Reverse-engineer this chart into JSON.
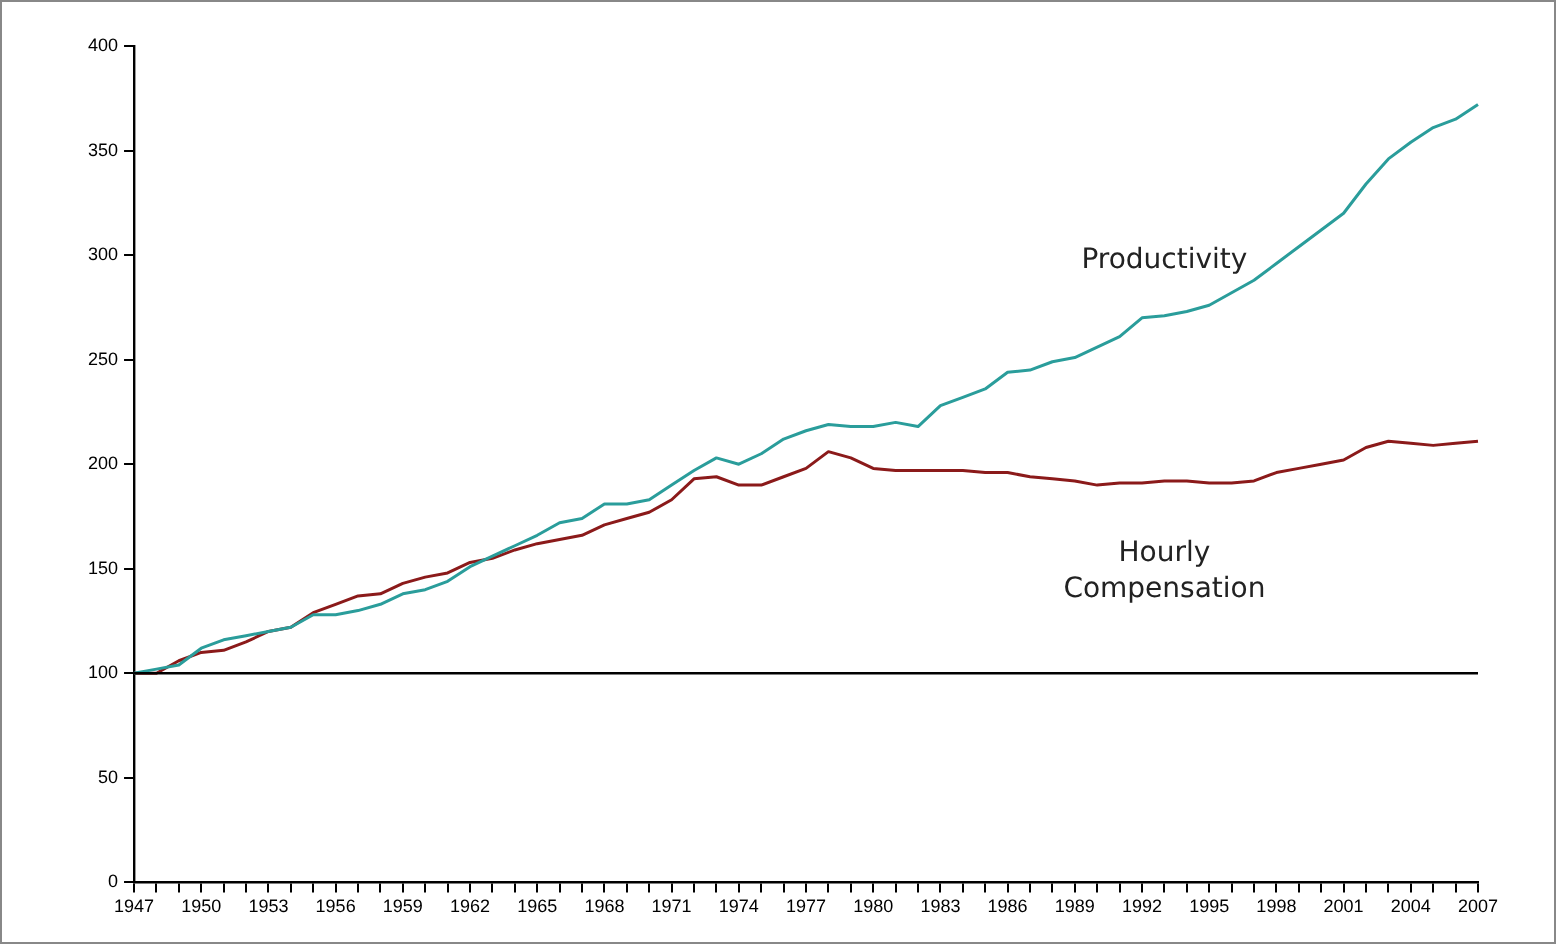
{
  "chart_data": {
    "type": "line",
    "categories": [
      "1947",
      null,
      null,
      "1950",
      null,
      null,
      "1953",
      null,
      null,
      "1956",
      null,
      null,
      "1959",
      null,
      null,
      "1962",
      null,
      null,
      "1965",
      null,
      null,
      "1968",
      null,
      null,
      "1971",
      null,
      null,
      "1974",
      null,
      null,
      "1977",
      null,
      null,
      "1980",
      null,
      null,
      "1983",
      null,
      null,
      "1986",
      null,
      null,
      "1989",
      null,
      null,
      "1992",
      null,
      null,
      "1995",
      null,
      null,
      "1998",
      null,
      null,
      "2001",
      null,
      null,
      "2004",
      null,
      null,
      "2007"
    ],
    "series": [
      {
        "name": "Productivity",
        "color": "#2a9d9b",
        "values": [
          100,
          102,
          104,
          112,
          116,
          118,
          120,
          122,
          128,
          128,
          130,
          133,
          138,
          140,
          144,
          151,
          156,
          161,
          166,
          172,
          174,
          181,
          181,
          183,
          190,
          197,
          203,
          200,
          205,
          212,
          216,
          219,
          218,
          218,
          220,
          218,
          228,
          232,
          236,
          244,
          245,
          249,
          251,
          256,
          261,
          270,
          271,
          273,
          276,
          282,
          288,
          296,
          304,
          312,
          320,
          334,
          346,
          354,
          361,
          365,
          372
        ]
      },
      {
        "name": "Hourly Compensation",
        "color": "#8b1a1a",
        "values": [
          100,
          100,
          106,
          110,
          111,
          115,
          120,
          122,
          129,
          133,
          137,
          138,
          143,
          146,
          148,
          153,
          155,
          159,
          162,
          164,
          166,
          171,
          174,
          177,
          183,
          193,
          194,
          190,
          190,
          194,
          198,
          206,
          203,
          198,
          197,
          197,
          197,
          197,
          196,
          196,
          194,
          193,
          192,
          190,
          191,
          191,
          192,
          192,
          191,
          191,
          192,
          196,
          198,
          200,
          202,
          208,
          211,
          210,
          209,
          210,
          211
        ]
      }
    ],
    "ylim": [
      0,
      400
    ],
    "yticks": [
      0,
      50,
      100,
      150,
      200,
      250,
      300,
      350,
      400
    ],
    "ref_lines": [
      {
        "axis": "y",
        "value": 100,
        "color": "#000000"
      }
    ],
    "grid": false,
    "legend": false,
    "marker": "none",
    "line_style": "solid"
  }
}
